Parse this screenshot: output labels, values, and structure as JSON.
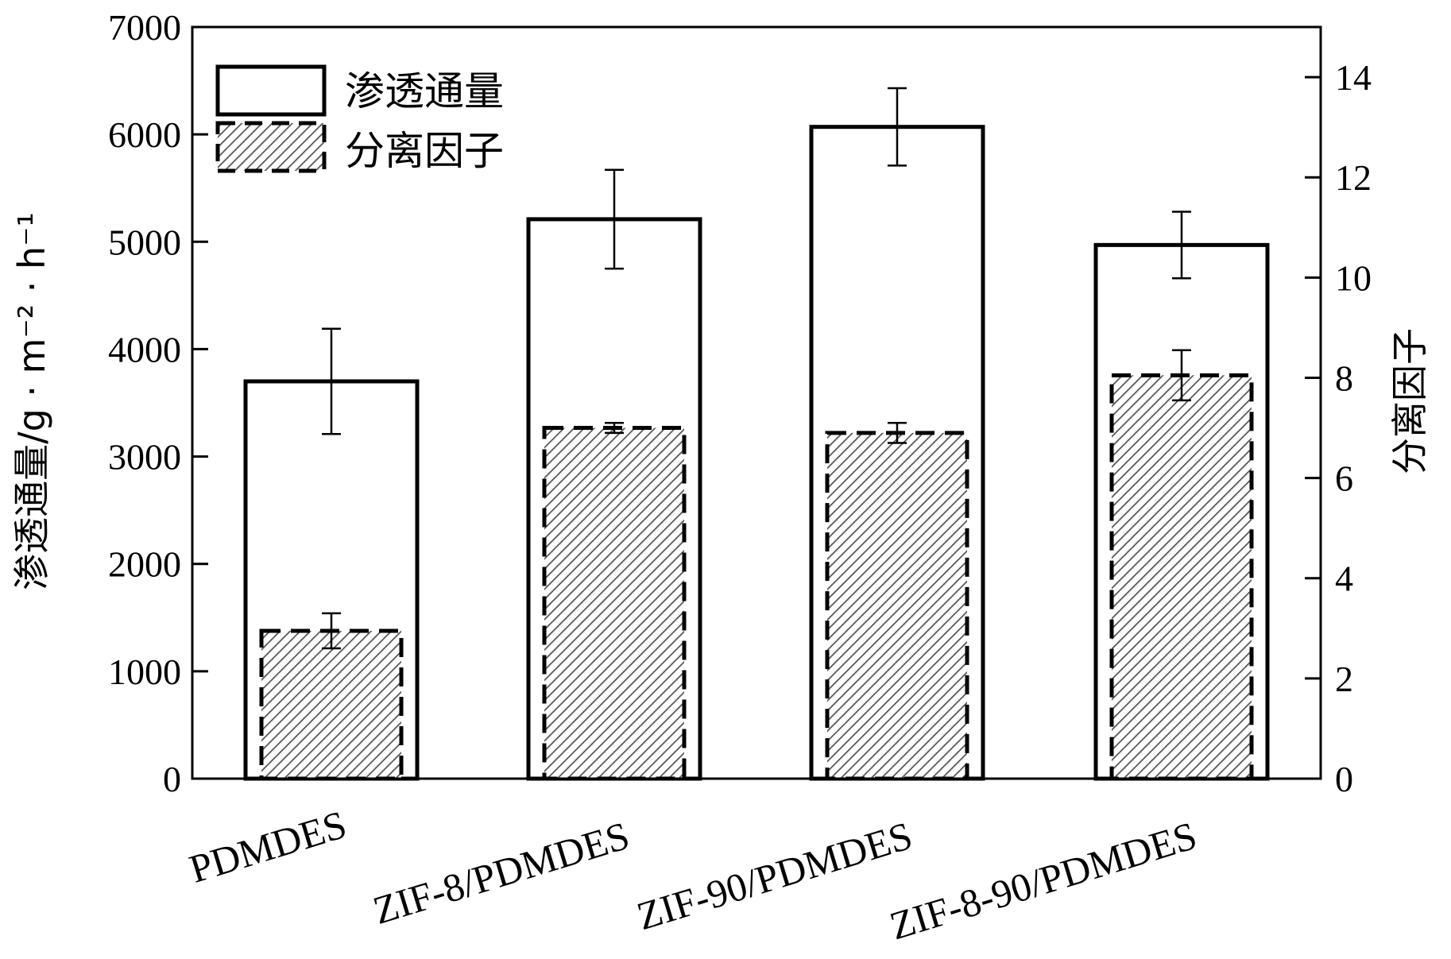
{
  "chart_data": {
    "type": "bar",
    "categories": [
      "PDMDES",
      "ZIF-8/PDMDES",
      "ZIF-90/PDMDES",
      "ZIF-8-90/PDMDES"
    ],
    "series": [
      {
        "name": "渗透通量",
        "axis": "left",
        "values": [
          3700,
          5210,
          6070,
          4970
        ],
        "errors": [
          490,
          460,
          360,
          310
        ]
      },
      {
        "name": "分离因子",
        "axis": "right",
        "values": [
          2.95,
          7.0,
          6.9,
          8.05
        ],
        "errors": [
          0.35,
          0.1,
          0.2,
          0.5
        ]
      }
    ],
    "ylabel_left": "渗透通量/g · m⁻² · h⁻¹",
    "ylabel_right": "分离因子",
    "ylim_left": [
      0,
      7000
    ],
    "ylim_right": [
      0,
      15
    ],
    "yticks_left": [
      0,
      1000,
      2000,
      3000,
      4000,
      5000,
      6000,
      7000
    ],
    "yticks_right": [
      0,
      2,
      4,
      6,
      8,
      10,
      12,
      14
    ],
    "legend_position": "top-left",
    "grid": false
  },
  "colors": {
    "axis": "#000000",
    "bar_fill": "#ffffff",
    "hatch": "#555555"
  }
}
